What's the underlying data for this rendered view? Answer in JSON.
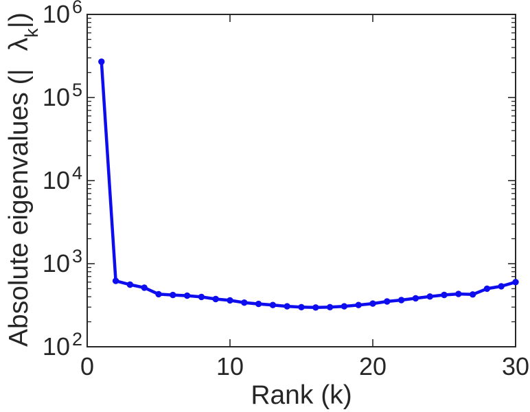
{
  "chart_data": {
    "type": "line",
    "title": "",
    "xlabel": "Rank (k)",
    "ylabel": "Absolute eigenvalues (|λk|)",
    "ylabel_parts": {
      "prefix": "Absolute eigenvalues (|",
      "symbol": "λ",
      "subscript": "k",
      "suffix": "|)"
    },
    "x_range": [
      0,
      30
    ],
    "y_scale": "log",
    "y_exp_range": [
      2,
      6
    ],
    "xticks": [
      "0",
      "10",
      "20",
      "30"
    ],
    "xtick_values": [
      0,
      10,
      20,
      30
    ],
    "ytick_base": "10",
    "ytick_exponents": [
      "2",
      "3",
      "4",
      "5",
      "6"
    ],
    "grid": false,
    "legend": null,
    "marker": "filled-circle",
    "line_color": "#0d0dee",
    "axis_color": "#262626",
    "x": [
      1,
      2,
      3,
      4,
      5,
      6,
      7,
      8,
      9,
      10,
      11,
      12,
      13,
      14,
      15,
      16,
      17,
      18,
      19,
      20,
      21,
      22,
      23,
      24,
      25,
      26,
      27,
      28,
      29,
      30
    ],
    "y": [
      270000,
      620,
      560,
      515,
      430,
      420,
      412,
      398,
      375,
      362,
      340,
      328,
      318,
      307,
      300,
      297,
      300,
      307,
      318,
      331,
      351,
      365,
      383,
      403,
      421,
      432,
      426,
      500,
      535,
      600
    ]
  }
}
